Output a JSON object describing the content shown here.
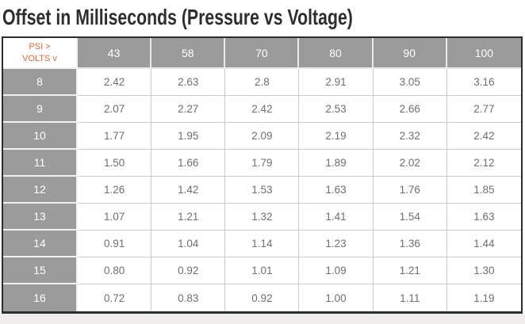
{
  "page": {
    "title": "Offset in Milliseconds (Pressure vs Voltage)"
  },
  "table": {
    "corner": {
      "line1": "PSI >",
      "line2": "VOLTS v"
    },
    "columns": [
      "43",
      "58",
      "70",
      "80",
      "90",
      "100"
    ],
    "rows": [
      {
        "volts": "8",
        "values": [
          "2.42",
          "2.63",
          "2.8",
          "2.91",
          "3.05",
          "3.16"
        ]
      },
      {
        "volts": "9",
        "values": [
          "2.07",
          "2.27",
          "2.42",
          "2.53",
          "2.66",
          "2.77"
        ]
      },
      {
        "volts": "10",
        "values": [
          "1.77",
          "1.95",
          "2.09",
          "2.19",
          "2.32",
          "2.42"
        ]
      },
      {
        "volts": "11",
        "values": [
          "1.50",
          "1.66",
          "1.79",
          "1.89",
          "2.02",
          "2.12"
        ]
      },
      {
        "volts": "12",
        "values": [
          "1.26",
          "1.42",
          "1.53",
          "1.63",
          "1.76",
          "1.85"
        ]
      },
      {
        "volts": "13",
        "values": [
          "1.07",
          "1.21",
          "1.32",
          "1.41",
          "1.54",
          "1.63"
        ]
      },
      {
        "volts": "14",
        "values": [
          "0.91",
          "1.04",
          "1.14",
          "1.23",
          "1.36",
          "1.44"
        ]
      },
      {
        "volts": "15",
        "values": [
          "0.80",
          "0.92",
          "1.01",
          "1.09",
          "1.21",
          "1.30"
        ]
      },
      {
        "volts": "16",
        "values": [
          "0.72",
          "0.83",
          "0.92",
          "1.00",
          "1.11",
          "1.19"
        ]
      }
    ],
    "colors": {
      "header_gray": "#9b9b9b",
      "corner_text_orange": "#e0653f",
      "data_text_gray": "#6f6f6f",
      "outer_border_dark": "#2d2d2d",
      "cell_border_light": "#cccccc",
      "below_strip": "#efedeb"
    }
  },
  "chart_data": {
    "type": "table",
    "title": "Offset in Milliseconds (Pressure vs Voltage)",
    "column_axis_label": "PSI",
    "row_axis_label": "VOLTS",
    "columns_psi": [
      43,
      58,
      70,
      80,
      90,
      100
    ],
    "rows_volts": [
      8,
      9,
      10,
      11,
      12,
      13,
      14,
      15,
      16
    ],
    "values_ms": [
      [
        2.42,
        2.63,
        2.8,
        2.91,
        3.05,
        3.16
      ],
      [
        2.07,
        2.27,
        2.42,
        2.53,
        2.66,
        2.77
      ],
      [
        1.77,
        1.95,
        2.09,
        2.19,
        2.32,
        2.42
      ],
      [
        1.5,
        1.66,
        1.79,
        1.89,
        2.02,
        2.12
      ],
      [
        1.26,
        1.42,
        1.53,
        1.63,
        1.76,
        1.85
      ],
      [
        1.07,
        1.21,
        1.32,
        1.41,
        1.54,
        1.63
      ],
      [
        0.91,
        1.04,
        1.14,
        1.23,
        1.36,
        1.44
      ],
      [
        0.8,
        0.92,
        1.01,
        1.09,
        1.21,
        1.3
      ],
      [
        0.72,
        0.83,
        0.92,
        1.0,
        1.11,
        1.19
      ]
    ]
  }
}
